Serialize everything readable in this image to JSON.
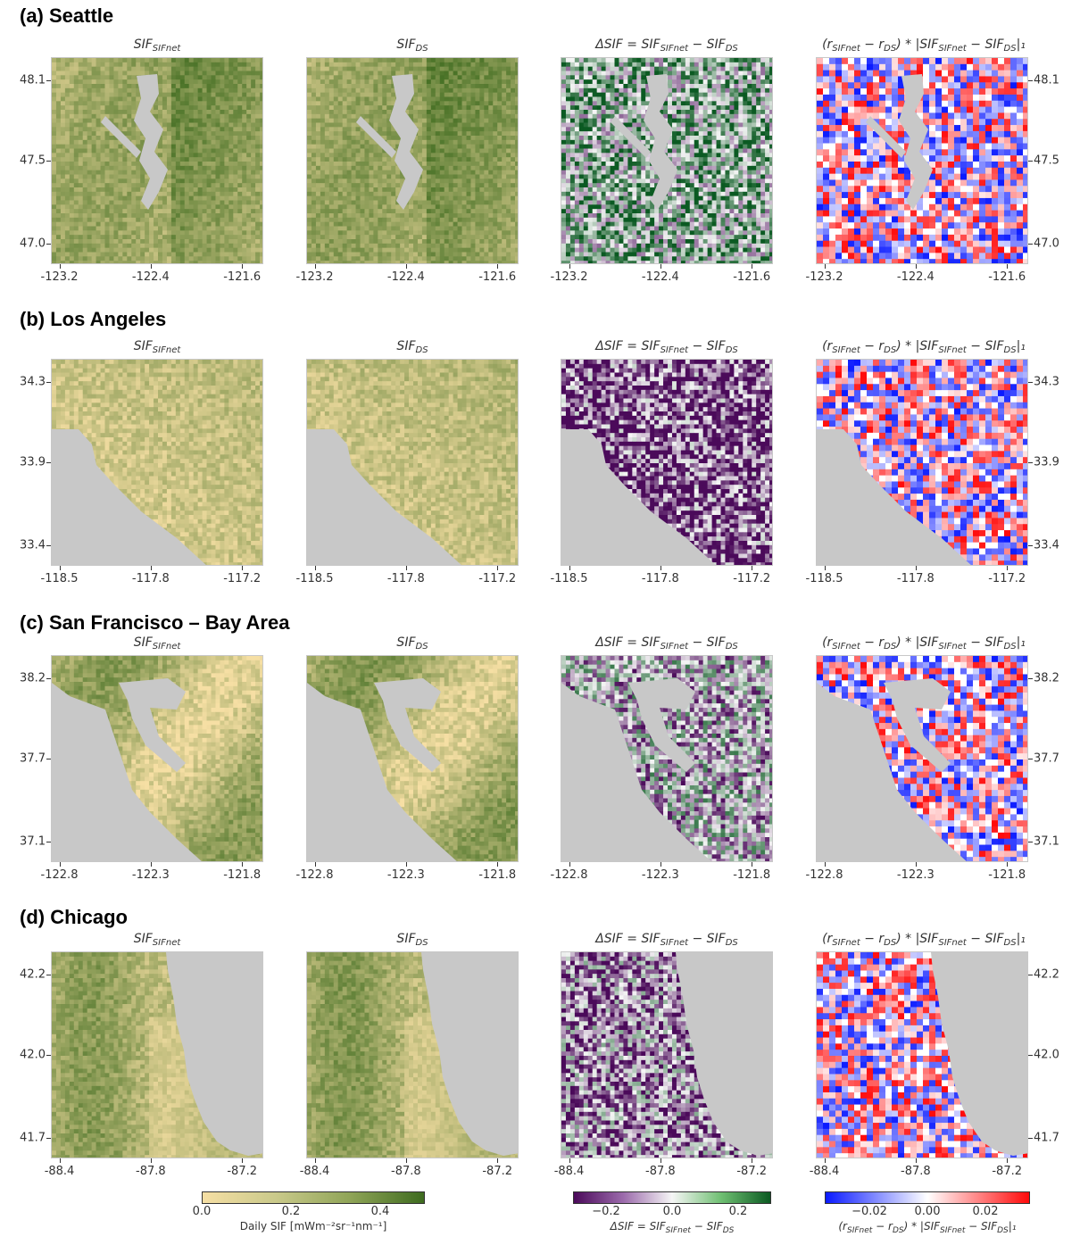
{
  "colors": {
    "sif_low": "#f6dfa4",
    "sif_high": "#3e6b1f",
    "diff_low": "#4b0a5a",
    "diff_mid": "#f6f6f6",
    "diff_high": "#0b5a22",
    "contrib_low": "#0a1aff",
    "contrib_mid": "#ffffff",
    "contrib_high": "#ff0a0a",
    "water": "#c8c8c8"
  },
  "panel_titles": {
    "sif_sifnet": "SIF",
    "sif_sifnet_sub": "SIFnet",
    "sif_ds": "SIF",
    "sif_ds_sub": "DS",
    "delta": "ΔSIF = SIF",
    "delta_sub1": "SIFnet",
    "delta_mid": " − SIF",
    "delta_sub2": "DS",
    "contrib": "(r",
    "contrib_sub1": "SIFnet",
    "contrib_mid1": " − r",
    "contrib_sub2": "DS",
    "contrib_mid2": ") * |SIF",
    "contrib_sub3": "SIFnet",
    "contrib_mid3": " − SIF",
    "contrib_sub4": "DS",
    "contrib_end": "|₁"
  },
  "chart_data": [
    {
      "type": "heatmap",
      "region": "(a) Seattle",
      "xticks": [
        "-123.2",
        "-122.4",
        "-121.6"
      ],
      "yticks": [
        "48.1",
        "47.5",
        "47.0"
      ],
      "panels": [
        "SIF_SIFnet",
        "SIF_DS",
        "ΔSIF",
        "contribution"
      ]
    },
    {
      "type": "heatmap",
      "region": "(b) Los Angeles",
      "xticks": [
        "-118.5",
        "-117.8",
        "-117.2"
      ],
      "yticks": [
        "34.3",
        "33.9",
        "33.4"
      ],
      "panels": [
        "SIF_SIFnet",
        "SIF_DS",
        "ΔSIF",
        "contribution"
      ]
    },
    {
      "type": "heatmap",
      "region": "(c) San Francisco – Bay Area",
      "xticks": [
        "-122.8",
        "-122.3",
        "-121.8"
      ],
      "yticks": [
        "38.2",
        "37.7",
        "37.1"
      ],
      "panels": [
        "SIF_SIFnet",
        "SIF_DS",
        "ΔSIF",
        "contribution"
      ]
    },
    {
      "type": "heatmap",
      "region": "(d) Chicago",
      "xticks": [
        "-88.4",
        "-87.8",
        "-87.2"
      ],
      "yticks": [
        "42.2",
        "42.0",
        "41.7"
      ],
      "panels": [
        "SIF_SIFnet",
        "SIF_DS",
        "ΔSIF",
        "contribution"
      ]
    }
  ],
  "colorbars": [
    {
      "ticks": [
        "0.0",
        "0.2",
        "0.4"
      ],
      "range": [
        0.0,
        0.5
      ],
      "label": "Daily SIF [mWm⁻²sr⁻¹nm⁻¹]"
    },
    {
      "ticks": [
        "−0.2",
        "0.0",
        "0.2"
      ],
      "range": [
        -0.3,
        0.3
      ],
      "label": "ΔSIF = SIF_SIFnet − SIF_DS"
    },
    {
      "ticks": [
        "−0.02",
        "0.00",
        "0.02"
      ],
      "range": [
        -0.035,
        0.035
      ],
      "label": "(r_SIFnet − r_DS) * |SIF_SIFnet − SIF_DS|₁"
    }
  ]
}
